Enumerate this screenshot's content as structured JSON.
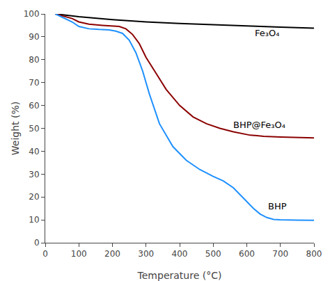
{
  "chart_data": {
    "type": "line",
    "xlabel": "Temperature (°C)",
    "ylabel": "Weight (%)",
    "xlim": [
      0,
      800
    ],
    "ylim": [
      0,
      100
    ],
    "xticks": [
      0,
      100,
      200,
      300,
      400,
      500,
      600,
      700,
      800
    ],
    "yticks": [
      0,
      10,
      20,
      30,
      40,
      50,
      60,
      70,
      80,
      90,
      100
    ],
    "grid": false,
    "series": [
      {
        "color": "#000000",
        "x": [
          30,
          100,
          200,
          300,
          400,
          500,
          600,
          700,
          800
        ],
        "values": [
          100,
          98.8,
          97.5,
          96.5,
          95.8,
          95.2,
          94.7,
          94.2,
          93.8
        ]
      },
      {
        "color": "#8B0000",
        "x": [
          30,
          80,
          100,
          130,
          170,
          200,
          220,
          240,
          260,
          280,
          300,
          330,
          360,
          400,
          440,
          480,
          520,
          560,
          590,
          610,
          630,
          650,
          700,
          750,
          800
        ],
        "values": [
          100,
          98.0,
          96.5,
          95.5,
          95.0,
          94.8,
          94.5,
          93.5,
          91.0,
          87.0,
          81.0,
          74.0,
          67.0,
          60.0,
          55.0,
          52.0,
          50.0,
          48.5,
          47.5,
          47.0,
          46.8,
          46.5,
          46.2,
          46.0,
          45.8
        ]
      },
      {
        "color": "#1E90FF",
        "x": [
          30,
          80,
          100,
          130,
          160,
          190,
          210,
          230,
          250,
          270,
          290,
          310,
          340,
          380,
          420,
          460,
          500,
          530,
          560,
          580,
          600,
          620,
          640,
          660,
          680,
          700,
          750,
          800
        ],
        "values": [
          100,
          96.5,
          94.5,
          93.5,
          93.2,
          93.0,
          92.5,
          91.5,
          88.5,
          83.0,
          75.0,
          65.0,
          52.0,
          42.0,
          36.0,
          32.0,
          29.0,
          27.0,
          24.0,
          21.0,
          18.0,
          15.0,
          12.5,
          11.0,
          10.2,
          10.0,
          9.9,
          9.8
        ]
      }
    ],
    "annotations": [
      {
        "text": "Fe₃O₄",
        "x": 620,
        "y": 91.5
      },
      {
        "text": "BHP@Fe₃O₄",
        "x": 555,
        "y": 51.5
      },
      {
        "text": "BHP",
        "x": 660,
        "y": 16
      }
    ]
  }
}
